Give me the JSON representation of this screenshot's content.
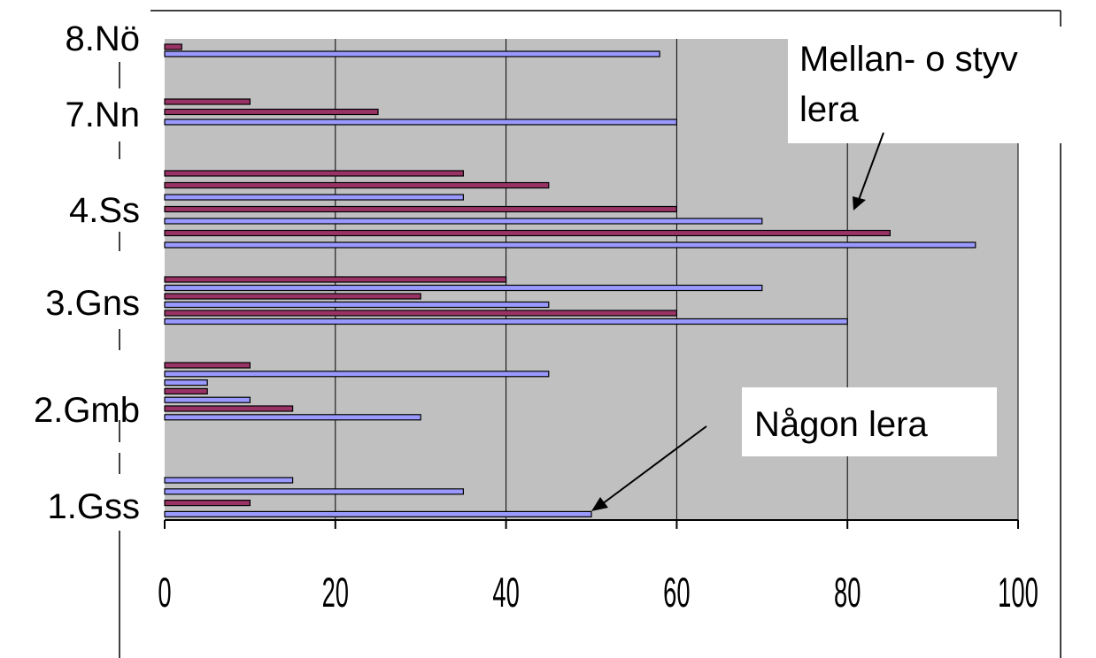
{
  "chart_data": {
    "type": "bar",
    "orientation": "horizontal",
    "xlim": [
      0,
      100
    ],
    "x_ticks": [
      0,
      20,
      40,
      60,
      80,
      100
    ],
    "grid": true,
    "colors": {
      "blue": "#9999ff",
      "red": "#993366",
      "plot_bg": "#c0c0c0"
    },
    "categories": [
      {
        "label": "8.Nö",
        "bars": [
          {
            "value": 2,
            "color": "red"
          },
          {
            "value": 58,
            "color": "blue"
          }
        ]
      },
      {
        "label": "7.Nn",
        "bars": [
          {
            "value": 10,
            "color": "red"
          },
          {
            "value": 25,
            "color": "red"
          },
          {
            "value": 60,
            "color": "blue"
          }
        ]
      },
      {
        "label": "4.Ss",
        "bars": [
          {
            "value": 35,
            "color": "red"
          },
          {
            "value": 45,
            "color": "red"
          },
          {
            "value": 35,
            "color": "blue"
          },
          {
            "value": 60,
            "color": "red"
          },
          {
            "value": 70,
            "color": "blue"
          },
          {
            "value": 85,
            "color": "red"
          },
          {
            "value": 95,
            "color": "blue"
          }
        ]
      },
      {
        "label": "3.Gns",
        "bars": [
          {
            "value": 40,
            "color": "red"
          },
          {
            "value": 70,
            "color": "blue"
          },
          {
            "value": 30,
            "color": "red"
          },
          {
            "value": 45,
            "color": "blue"
          },
          {
            "value": 60,
            "color": "red"
          },
          {
            "value": 80,
            "color": "blue"
          }
        ]
      },
      {
        "label": "2.Gmb",
        "bars": [
          {
            "value": 10,
            "color": "red"
          },
          {
            "value": 45,
            "color": "blue"
          },
          {
            "value": 5,
            "color": "blue"
          },
          {
            "value": 5,
            "color": "red"
          },
          {
            "value": 10,
            "color": "blue"
          },
          {
            "value": 15,
            "color": "red"
          },
          {
            "value": 30,
            "color": "blue"
          }
        ]
      },
      {
        "label": "1.Gss",
        "bars": [
          {
            "value": 15,
            "color": "blue"
          },
          {
            "value": 35,
            "color": "blue"
          },
          {
            "value": 10,
            "color": "red"
          },
          {
            "value": 50,
            "color": "blue"
          }
        ]
      }
    ],
    "annotations": [
      {
        "lines": [
          "Mellan- o styv",
          "lera"
        ]
      },
      {
        "lines": [
          "Någon lera"
        ]
      }
    ]
  }
}
